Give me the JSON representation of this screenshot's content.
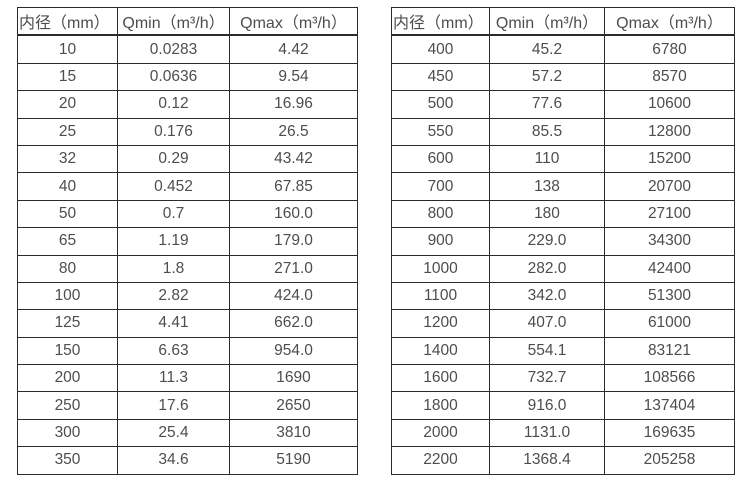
{
  "header": {
    "diameter": "内径（mm）",
    "qmin": "Qmin（m³/h）",
    "qmax": "Qmax（m³/h）"
  },
  "tables": [
    {
      "name": "small-diameters",
      "rows": [
        [
          "10",
          "0.0283",
          "4.42"
        ],
        [
          "15",
          "0.0636",
          "9.54"
        ],
        [
          "20",
          "0.12",
          "16.96"
        ],
        [
          "25",
          "0.176",
          "26.5"
        ],
        [
          "32",
          "0.29",
          "43.42"
        ],
        [
          "40",
          "0.452",
          "67.85"
        ],
        [
          "50",
          "0.7",
          "160.0"
        ],
        [
          "65",
          "1.19",
          "179.0"
        ],
        [
          "80",
          "1.8",
          "271.0"
        ],
        [
          "100",
          "2.82",
          "424.0"
        ],
        [
          "125",
          "4.41",
          "662.0"
        ],
        [
          "150",
          "6.63",
          "954.0"
        ],
        [
          "200",
          "11.3",
          "1690"
        ],
        [
          "250",
          "17.6",
          "2650"
        ],
        [
          "300",
          "25.4",
          "3810"
        ],
        [
          "350",
          "34.6",
          "5190"
        ]
      ]
    },
    {
      "name": "large-diameters",
      "rows": [
        [
          "400",
          "45.2",
          "6780"
        ],
        [
          "450",
          "57.2",
          "8570"
        ],
        [
          "500",
          "77.6",
          "10600"
        ],
        [
          "550",
          "85.5",
          "12800"
        ],
        [
          "600",
          "110",
          "15200"
        ],
        [
          "700",
          "138",
          "20700"
        ],
        [
          "800",
          "180",
          "27100"
        ],
        [
          "900",
          "229.0",
          "34300"
        ],
        [
          "1000",
          "282.0",
          "42400"
        ],
        [
          "1100",
          "342.0",
          "51300"
        ],
        [
          "1200",
          "407.0",
          "61000"
        ],
        [
          "1400",
          "554.1",
          "83121"
        ],
        [
          "1600",
          "732.7",
          "108566"
        ],
        [
          "1800",
          "916.0",
          "137404"
        ],
        [
          "2000",
          "1131.0",
          "169635"
        ],
        [
          "2200",
          "1368.4",
          "205258"
        ]
      ]
    }
  ]
}
